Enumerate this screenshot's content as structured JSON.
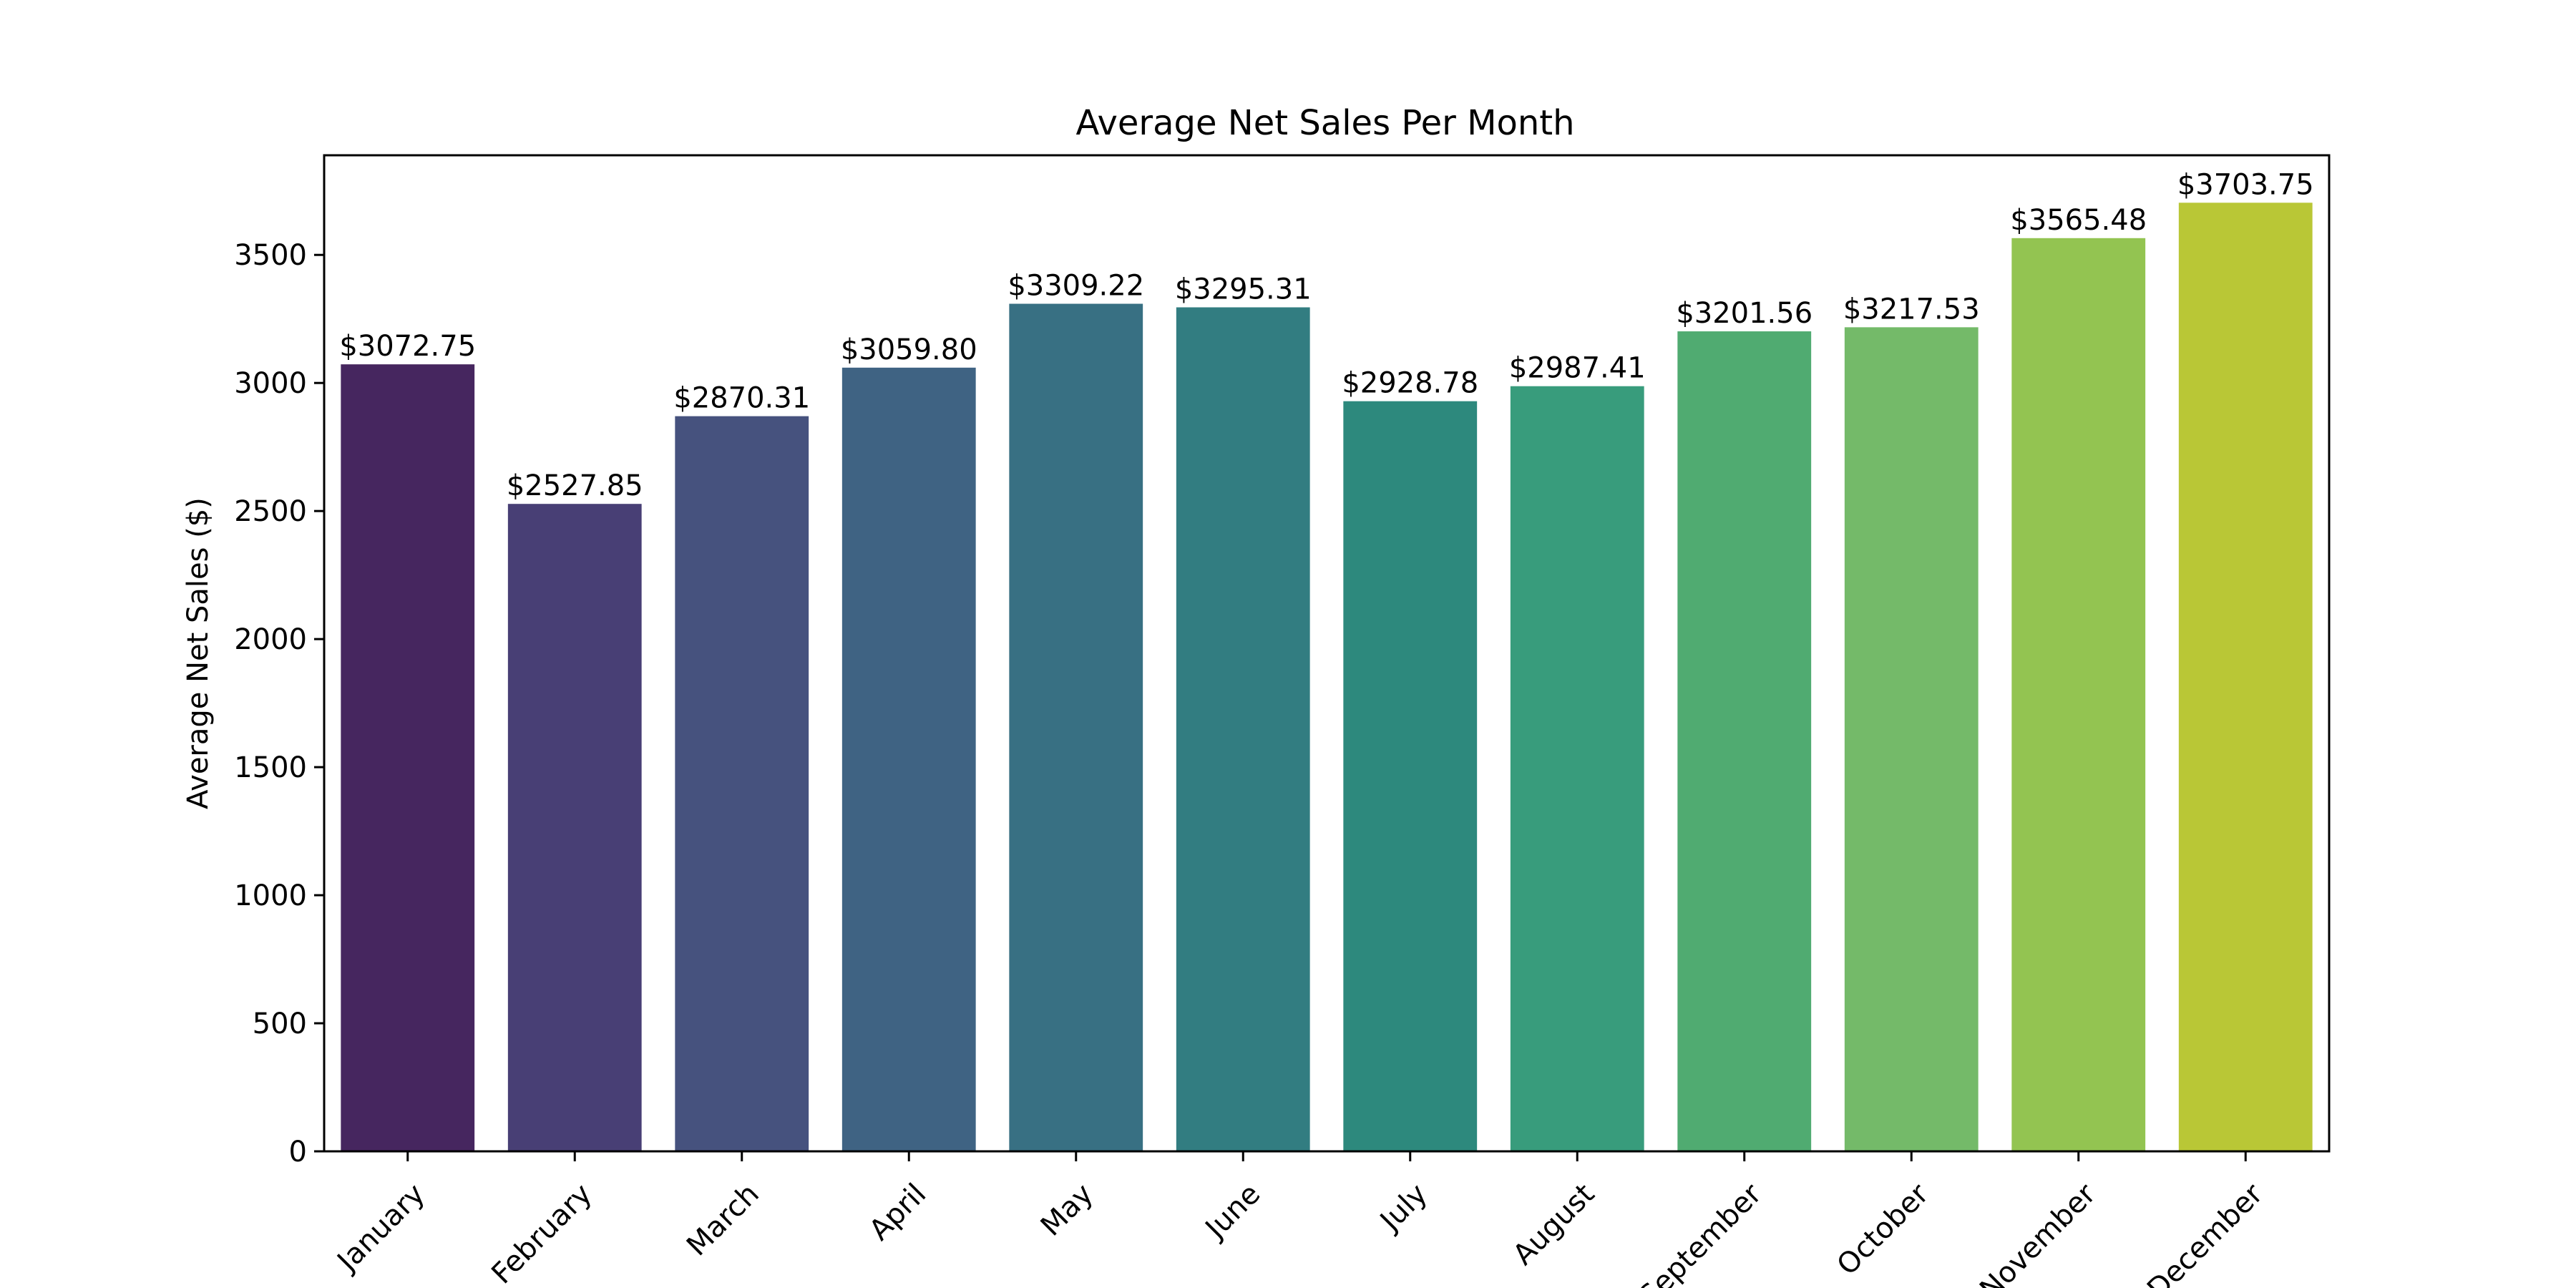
{
  "chart_data": {
    "type": "bar",
    "title": "Average Net Sales Per Month",
    "xlabel": "",
    "ylabel": "Average Net Sales ($)",
    "categories": [
      "January",
      "February",
      "March",
      "April",
      "May",
      "June",
      "July",
      "August",
      "September",
      "October",
      "November",
      "December"
    ],
    "values": [
      3072.75,
      2527.85,
      2870.31,
      3059.8,
      3309.22,
      3295.31,
      2928.78,
      2987.41,
      3201.56,
      3217.53,
      3565.48,
      3703.75
    ],
    "data_labels": [
      "$3072.75",
      "$2527.85",
      "$2870.31",
      "$3059.80",
      "$3309.22",
      "$3295.31",
      "$2928.78",
      "$2987.41",
      "$3201.56",
      "$3217.53",
      "$3565.48",
      "$3703.75"
    ],
    "colors": [
      "#46265f",
      "#483f75",
      "#46527e",
      "#3f6383",
      "#387083",
      "#327d81",
      "#2d897d",
      "#389c7c",
      "#50ab71",
      "#74ba69",
      "#93c451",
      "#b9c736"
    ],
    "yticks": [
      0,
      500,
      1000,
      1500,
      2000,
      2500,
      3000,
      3500
    ],
    "ylim": [
      0,
      3889
    ],
    "grid": false,
    "x_tick_rotation": 45
  }
}
